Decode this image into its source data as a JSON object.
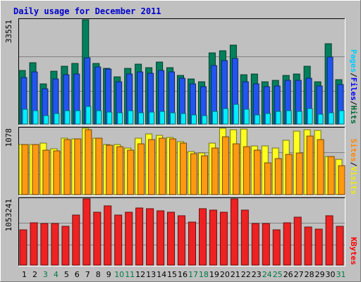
{
  "chart_data": {
    "type": "bar",
    "title": "Daily usage for December 2011",
    "days": [
      {
        "label": "1",
        "weekend": false
      },
      {
        "label": "2",
        "weekend": false
      },
      {
        "label": "3",
        "weekend": true
      },
      {
        "label": "4",
        "weekend": true
      },
      {
        "label": "5",
        "weekend": false
      },
      {
        "label": "6",
        "weekend": false
      },
      {
        "label": "7",
        "weekend": false
      },
      {
        "label": "8",
        "weekend": false
      },
      {
        "label": "9",
        "weekend": false
      },
      {
        "label": "10",
        "weekend": true
      },
      {
        "label": "11",
        "weekend": true
      },
      {
        "label": "12",
        "weekend": false
      },
      {
        "label": "13",
        "weekend": false
      },
      {
        "label": "14",
        "weekend": false
      },
      {
        "label": "15",
        "weekend": false
      },
      {
        "label": "16",
        "weekend": false
      },
      {
        "label": "17",
        "weekend": true
      },
      {
        "label": "18",
        "weekend": true
      },
      {
        "label": "19",
        "weekend": false
      },
      {
        "label": "20",
        "weekend": false
      },
      {
        "label": "21",
        "weekend": false
      },
      {
        "label": "22",
        "weekend": false
      },
      {
        "label": "23",
        "weekend": false
      },
      {
        "label": "24",
        "weekend": true
      },
      {
        "label": "25",
        "weekend": true
      },
      {
        "label": "26",
        "weekend": false
      },
      {
        "label": "27",
        "weekend": false
      },
      {
        "label": "28",
        "weekend": false
      },
      {
        "label": "29",
        "weekend": false
      },
      {
        "label": "30",
        "weekend": false
      },
      {
        "label": "31",
        "weekend": true
      }
    ],
    "panels": [
      {
        "id": "hits",
        "max_label": "33551",
        "ymax": 33551,
        "legend": [
          {
            "text": "Pages",
            "color": "#00ccff"
          },
          {
            "text": "/",
            "color": "#000000"
          },
          {
            "text": "Files",
            "color": "#0000ff"
          },
          {
            "text": "/",
            "color": "#000000"
          },
          {
            "text": "Hits",
            "color": "#006633"
          }
        ],
        "series": [
          {
            "name": "Hits",
            "color": "#00805c",
            "values": [
              17300,
              19700,
              12900,
              17000,
              18500,
              19500,
              33551,
              19400,
              17800,
              15200,
              17800,
              19300,
              18200,
              20000,
              18100,
              15600,
              14600,
              13600,
              22900,
              23500,
              25500,
              15800,
              16000,
              13600,
              14000,
              15600,
              16200,
              18500,
              13700,
              25800,
              14200
            ]
          },
          {
            "name": "Files",
            "color": "#2255ee",
            "values": [
              14900,
              16800,
              11400,
              14500,
              15800,
              16000,
              21300,
              18300,
              17600,
              13500,
              16000,
              16700,
              16300,
              17200,
              16800,
              14800,
              13000,
              12000,
              18800,
              20500,
              21000,
              13700,
              13000,
              12000,
              12200,
              14000,
              14100,
              14800,
              12300,
              21500,
              12800
            ]
          },
          {
            "name": "Pages",
            "color": "#00eeff",
            "values": [
              4800,
              4300,
              2800,
              3400,
              4200,
              4200,
              5600,
              4400,
              3900,
              3600,
              4400,
              3700,
              3800,
              4100,
              3600,
              3400,
              3000,
              2800,
              4000,
              5000,
              6400,
              4700,
              2900,
              3400,
              4000,
              4400,
              4000,
              5100,
              3100,
              3600,
              4400
            ]
          }
        ]
      },
      {
        "id": "visits",
        "max_label": "1078",
        "ymax": 1078,
        "legend": [
          {
            "text": "Sites",
            "color": "#ff8800"
          },
          {
            "text": "/",
            "color": "#000000"
          },
          {
            "text": "Visits",
            "color": "#eeee00"
          }
        ],
        "series": [
          {
            "name": "Visits",
            "color": "#ffff22",
            "values": [
              818,
              818,
              838,
              743,
              914,
              909,
              1078,
              921,
              818,
              818,
              753,
              921,
              985,
              968,
              927,
              855,
              700,
              673,
              832,
              1078,
              1055,
              1066,
              795,
              790,
              757,
              884,
              1032,
              1055,
              1043,
              616,
              573
            ]
          },
          {
            "name": "Sites",
            "color": "#ff9911",
            "values": [
              814,
              814,
              720,
              712,
              897,
              909,
              1055,
              921,
              807,
              784,
              718,
              827,
              897,
              920,
              906,
              832,
              665,
              633,
              753,
              943,
              830,
              784,
              720,
              518,
              590,
              651,
              675,
              947,
              896,
              622,
              473
            ]
          }
        ]
      },
      {
        "id": "kbytes",
        "max_label": "1053241",
        "ymax": 1053241,
        "legend": [
          {
            "text": "KBytes",
            "color": "#ff0000"
          }
        ],
        "series": [
          {
            "name": "KBytes",
            "color": "#ee2222",
            "values": [
              564000,
              676000,
              660000,
              660000,
              613000,
              790000,
              1053241,
              840000,
              941000,
              795000,
              844000,
              912000,
              892000,
              861000,
              840000,
              787000,
              682000,
              896000,
              871000,
              840000,
              1053241,
              876000,
              661000,
              661000,
              556000,
              667000,
              766000,
              604000,
              570000,
              781000,
              621000
            ]
          }
        ]
      }
    ]
  }
}
